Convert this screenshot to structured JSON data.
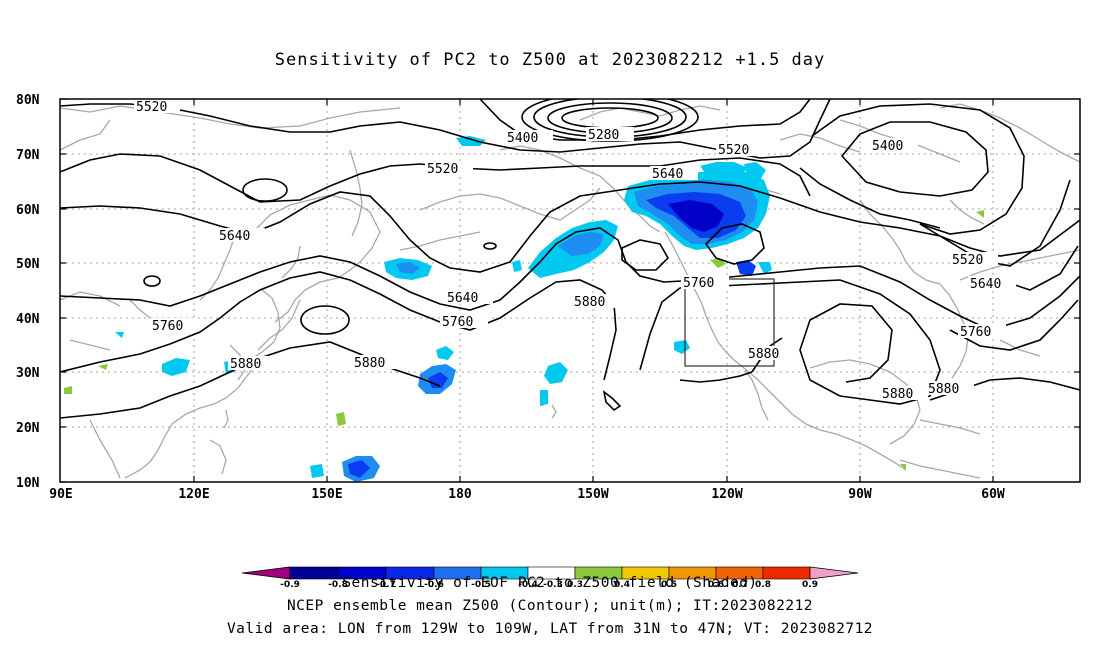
{
  "title": "Sensitivity of PC2 to Z500 at 2023082212 +1.5 day",
  "colors": {
    "contour": "#000000",
    "coast": "#a8a8a8",
    "grid": "#a0a0a0",
    "neg_strong": "#0000c8",
    "neg_mid": "#0a3cf0",
    "neg_light": "#1e8cf0",
    "neg_cyan": "#00c8f0",
    "pos_green": "#8cc83c"
  },
  "axes": {
    "lon_ticks": [
      "90E",
      "120E",
      "150E",
      "180",
      "150W",
      "120W",
      "90W",
      "60W"
    ],
    "lat_ticks": [
      "80N",
      "70N",
      "60N",
      "50N",
      "40N",
      "30N",
      "20N",
      "10N"
    ]
  },
  "contour_labels": [
    "5520",
    "5400",
    "5280",
    "5520",
    "5400",
    "5520",
    "5640",
    "5640",
    "5640",
    "5760",
    "5520",
    "5640",
    "5760",
    "5880",
    "5760",
    "5880",
    "5880",
    "5880",
    "5880",
    "5880",
    "5760"
  ],
  "colorbar": {
    "ticks": [
      "-0.9",
      "-0.8",
      "-0.7",
      "-0.6",
      "-0.5",
      "-0.4",
      "-0.3",
      "0.3",
      "0.4",
      "0.5",
      "0.6",
      "0.7",
      "0.8",
      "0.9"
    ],
    "colors": [
      "#a0007d",
      "#000096",
      "#0000c8",
      "#0a28e6",
      "#1e6ef0",
      "#1e8cf0",
      "#00c8f0",
      "#ffffff",
      "#8cc83c",
      "#f0c800",
      "#f09600",
      "#f06400",
      "#f02800",
      "#e60000",
      "#f0a0c8"
    ]
  },
  "captions": [
    "Sensitivity of EOF PC2 to Z500 field (Shaded)",
    "NCEP ensemble mean Z500 (Contour); unit(m); IT:2023082212",
    "Valid area: LON from 129W to 109W, LAT from 31N to 47N; VT: 2023082712"
  ]
}
